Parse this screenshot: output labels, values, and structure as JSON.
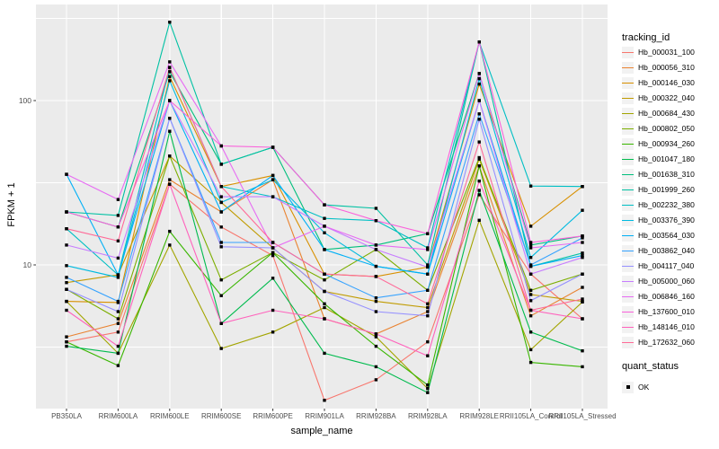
{
  "figure": {
    "panel_background": "#EBEBEB",
    "grid_major_color": "#FFFFFF",
    "grid_minor_color": "#FFFFFF",
    "tick_color": "#333333",
    "tick_label_color": "#4D4D4D",
    "point_color": "#000000",
    "legend_key_fill": "#F2F2F2"
  },
  "chart_data": {
    "type": "line",
    "title": "",
    "xlabel": "sample_name",
    "ylabel": "FPKM + 1",
    "y_scale": "log10",
    "ylim": [
      1.35,
      385
    ],
    "y_major_ticks": [
      10,
      100
    ],
    "y_tick_labels": [
      "10",
      "100"
    ],
    "y_minor_ticks": [
      3.162,
      31.62,
      316.2
    ],
    "grid": "on",
    "legend_position": "right",
    "marker": "black-square",
    "categories": [
      "PB350LA",
      "RRIM600LA",
      "RRIM600LE",
      "RRIM600SE",
      "RRIM600PE",
      "RRIM901LA",
      "RRIM928BA",
      "RRIM928LA",
      "RRIM928LE",
      "RRII105LA_Control",
      "RRII105LA_Stressed"
    ],
    "legend": {
      "title": "tracking_id"
    },
    "legend2": {
      "title": "quant_status",
      "items": [
        {
          "label": "OK"
        }
      ]
    },
    "series": [
      {
        "name": "Hb_000031_100",
        "color": "#F8766D",
        "values": [
          3.4,
          3.9,
          31,
          17,
          11.4,
          1.5,
          2.0,
          3.4,
          26.7,
          8.8,
          4.7
        ]
      },
      {
        "name": "Hb_000056_310",
        "color": "#EA8331",
        "values": [
          3.65,
          4.4,
          33,
          21,
          33,
          4.7,
          3.8,
          5.2,
          40,
          4.9,
          7.3
        ]
      },
      {
        "name": "Hb_000146_030",
        "color": "#D89000",
        "values": [
          6.0,
          5.9,
          140,
          30,
          35,
          8.8,
          8.5,
          9.7,
          126,
          17.2,
          30
        ]
      },
      {
        "name": "Hb_000322_040",
        "color": "#C09B00",
        "values": [
          7.8,
          8.7,
          46,
          24,
          12.7,
          6.9,
          6.0,
          5.5,
          44,
          6.6,
          6.0
        ]
      },
      {
        "name": "Hb_000684_430",
        "color": "#A3A500",
        "values": [
          6.0,
          2.9,
          13.2,
          3.1,
          3.9,
          5.5,
          3.65,
          1.77,
          18.7,
          3.05,
          5.95
        ]
      },
      {
        "name": "Hb_000802_050",
        "color": "#7CAE00",
        "values": [
          7.1,
          4.7,
          46,
          8.1,
          11.9,
          8.1,
          12.4,
          7.0,
          45,
          7.0,
          8.8
        ]
      },
      {
        "name": "Hb_000934_260",
        "color": "#39B600",
        "values": [
          3.4,
          2.44,
          16,
          6.5,
          11.9,
          5.8,
          3.2,
          1.86,
          40,
          2.55,
          2.4
        ]
      },
      {
        "name": "Hb_001047_180",
        "color": "#00BB4E",
        "values": [
          3.2,
          2.9,
          65,
          4.4,
          8.3,
          2.9,
          2.4,
          1.67,
          28.4,
          3.9,
          3.0
        ]
      },
      {
        "name": "Hb_001638_310",
        "color": "#00BF7D",
        "values": [
          21,
          17,
          150,
          41,
          52,
          12.4,
          13.2,
          15.5,
          146,
          13.2,
          15
        ]
      },
      {
        "name": "Hb_001999_260",
        "color": "#00C1A3",
        "values": [
          21,
          20,
          300,
          41,
          52,
          23.2,
          22.1,
          10,
          227,
          9.8,
          11.8
        ]
      },
      {
        "name": "Hb_002232_380",
        "color": "#00BFC4",
        "values": [
          16.6,
          8.7,
          159,
          30,
          26,
          19.2,
          18.6,
          12.7,
          227,
          30.2,
          30
        ]
      },
      {
        "name": "Hb_003376_390",
        "color": "#00BAE0",
        "values": [
          9.9,
          8.4,
          132,
          24,
          33,
          15.7,
          9.8,
          8.8,
          136,
          11.1,
          21.5
        ]
      },
      {
        "name": "Hb_003564_030",
        "color": "#00B0F6",
        "values": [
          35.6,
          8.7,
          100,
          21,
          35,
          12.4,
          9.8,
          8.8,
          100,
          9.8,
          11.4
        ]
      },
      {
        "name": "Hb_003862_040",
        "color": "#35A2FF",
        "values": [
          8.4,
          6.0,
          78,
          13.7,
          13.7,
          8.8,
          6.3,
          7.0,
          83,
          10,
          14.6
        ]
      },
      {
        "name": "Hb_004117_040",
        "color": "#9590FF",
        "values": [
          7.1,
          5.2,
          78,
          12.9,
          12.7,
          6.9,
          5.2,
          4.9,
          77,
          6.06,
          8.8
        ]
      },
      {
        "name": "Hb_005000_060",
        "color": "#C77CFF",
        "values": [
          13.2,
          11,
          100,
          26,
          26,
          17.2,
          12.4,
          9.7,
          100,
          8.8,
          11.1
        ]
      },
      {
        "name": "Hb_006846_160",
        "color": "#E76BF3",
        "values": [
          35.6,
          25,
          172,
          53,
          12.7,
          17.2,
          13.2,
          12.4,
          146,
          12.7,
          13.7
        ]
      },
      {
        "name": "Hb_137600_010",
        "color": "#FA62DB",
        "values": [
          21,
          17,
          100,
          53,
          52,
          23.2,
          18.6,
          15.5,
          227,
          13.7,
          15
        ]
      },
      {
        "name": "Hb_148146_010",
        "color": "#FF62BC",
        "values": [
          5.3,
          3.2,
          31,
          4.4,
          5.3,
          4.7,
          3.8,
          2.8,
          32.4,
          5.3,
          4.7
        ]
      },
      {
        "name": "Hb_172632_060",
        "color": "#FF6A98",
        "values": [
          16.6,
          14,
          159,
          30,
          13.7,
          8.8,
          8.5,
          5.8,
          56,
          5.3,
          6.2
        ]
      }
    ]
  }
}
